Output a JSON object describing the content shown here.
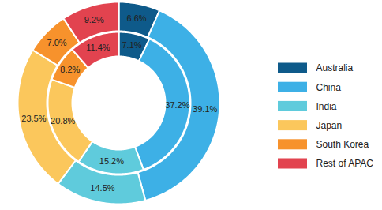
{
  "chart_data": {
    "type": "donut",
    "categories": [
      "Australia",
      "China",
      "India",
      "Japan",
      "South Korea",
      "Rest of APAC"
    ],
    "colors": [
      "#0e5a8a",
      "#3db0e6",
      "#5fcbdc",
      "#fbc75c",
      "#f7922c",
      "#e2434f"
    ],
    "series": [
      {
        "values": [
          6.6,
          39.1,
          14.5,
          23.5,
          7.0,
          9.2
        ],
        "value_labels": [
          "6.6%",
          "39.1%",
          "14.5%",
          "23.5%",
          "7.0%",
          "9.2%"
        ]
      },
      {
        "values": [
          7.1,
          37.2,
          15.2,
          20.8,
          8.2,
          11.4
        ],
        "value_labels": [
          "7.1%",
          "37.2%",
          "15.2%",
          "20.8%",
          "8.2%",
          "11.4%"
        ]
      }
    ],
    "data_labels": true,
    "legend": "right"
  }
}
